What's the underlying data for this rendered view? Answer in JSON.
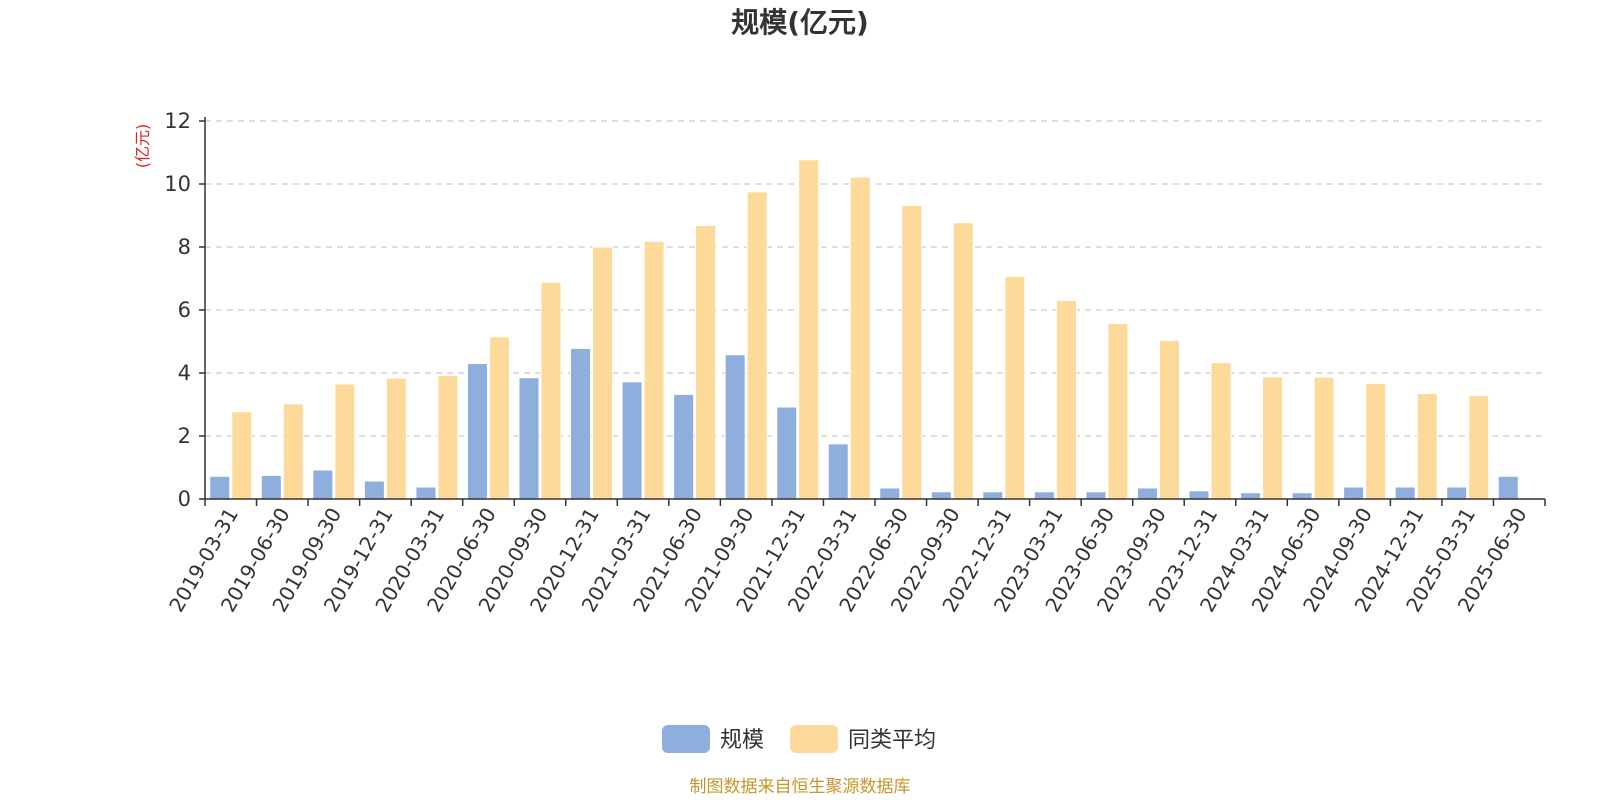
{
  "chart_data": {
    "type": "bar",
    "title": "规模(亿元)",
    "ylabel": "(亿元)",
    "xlabel": "",
    "ylim": [
      0,
      12
    ],
    "yticks": [
      0,
      2,
      4,
      6,
      8,
      10,
      12
    ],
    "grid": true,
    "legend_position": "bottom-center",
    "categories": [
      "2019-03-31",
      "2019-06-30",
      "2019-09-30",
      "2019-12-31",
      "2020-03-31",
      "2020-06-30",
      "2020-09-30",
      "2020-12-31",
      "2021-03-31",
      "2021-06-30",
      "2021-09-30",
      "2021-12-31",
      "2022-03-31",
      "2022-06-30",
      "2022-09-30",
      "2022-12-31",
      "2023-03-31",
      "2023-06-30",
      "2023-09-30",
      "2023-12-31",
      "2024-03-31",
      "2024-06-30",
      "2024-09-30",
      "2024-12-31",
      "2025-03-31",
      "2025-06-30"
    ],
    "series": [
      {
        "name": "规模",
        "color": "#8eaedd",
        "values": [
          0.72,
          0.75,
          0.92,
          0.57,
          0.38,
          4.3,
          3.85,
          4.78,
          3.72,
          3.32,
          4.58,
          2.92,
          1.75,
          0.35,
          0.23,
          0.23,
          0.23,
          0.23,
          0.35,
          0.26,
          0.2,
          0.2,
          0.38,
          0.38,
          0.38,
          0.72
        ]
      },
      {
        "name": "同类平均",
        "color": "#fdd99a",
        "values": [
          2.77,
          3.02,
          3.65,
          3.84,
          3.92,
          5.15,
          6.88,
          8.0,
          8.18,
          8.68,
          9.75,
          10.77,
          10.22,
          9.32,
          8.77,
          7.07,
          6.3,
          5.57,
          5.04,
          4.33,
          3.88,
          3.87,
          3.67,
          3.35,
          3.28,
          null
        ]
      }
    ]
  },
  "footer": {
    "source": "制图数据来自恒生聚源数据库"
  }
}
